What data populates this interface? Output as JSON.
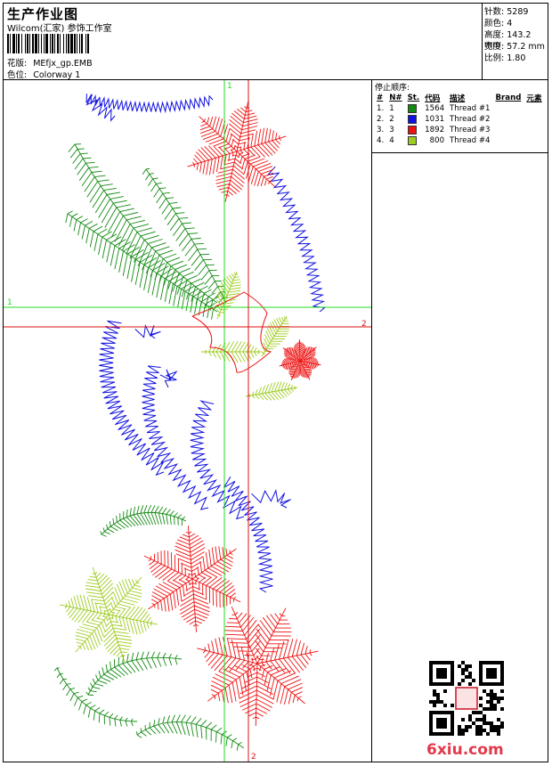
{
  "header": {
    "title": "生产作业图",
    "company": "Wilcom(汇家) 参饰工作室",
    "design_label": "花版:",
    "design_value": "MEfjx_gp.EMB",
    "colorway_label": "色位:",
    "colorway_value": "Colorway 1"
  },
  "stats": {
    "stitches": {
      "label": "针数:",
      "value": "5289"
    },
    "colors": {
      "label": "颜色:",
      "value": "4"
    },
    "height": {
      "label": "高度:",
      "value": "143.2 mm"
    },
    "width": {
      "label": "宽度:",
      "value": "57.2 mm"
    },
    "ratio": {
      "label": "比例:",
      "value": "1.80"
    }
  },
  "stop_sequence": {
    "title": "停止顺序:",
    "columns": [
      "#",
      "N#",
      "St.",
      "代码",
      "描述",
      "Brand",
      "元素"
    ],
    "rows": [
      {
        "idx": "1.",
        "n": "1",
        "color": "#138a13",
        "code": "1564",
        "desc": "Thread #1"
      },
      {
        "idx": "2.",
        "n": "2",
        "color": "#1010e0",
        "code": "1031",
        "desc": "Thread #2"
      },
      {
        "idx": "3.",
        "n": "3",
        "color": "#ee1111",
        "code": "1892",
        "desc": "Thread #3"
      },
      {
        "idx": "4.",
        "n": "4",
        "color": "#9fcc22",
        "code": "800",
        "desc": "Thread #4"
      }
    ]
  },
  "guides": {
    "label_1": "1",
    "label_2": "2"
  },
  "watermark": "6xiu.com",
  "colors": {
    "green": "#138a13",
    "blue": "#1010e0",
    "red": "#ee1111",
    "lime": "#9fcc22",
    "guide_green": "#22dd22",
    "guide_red": "#dd1111"
  }
}
